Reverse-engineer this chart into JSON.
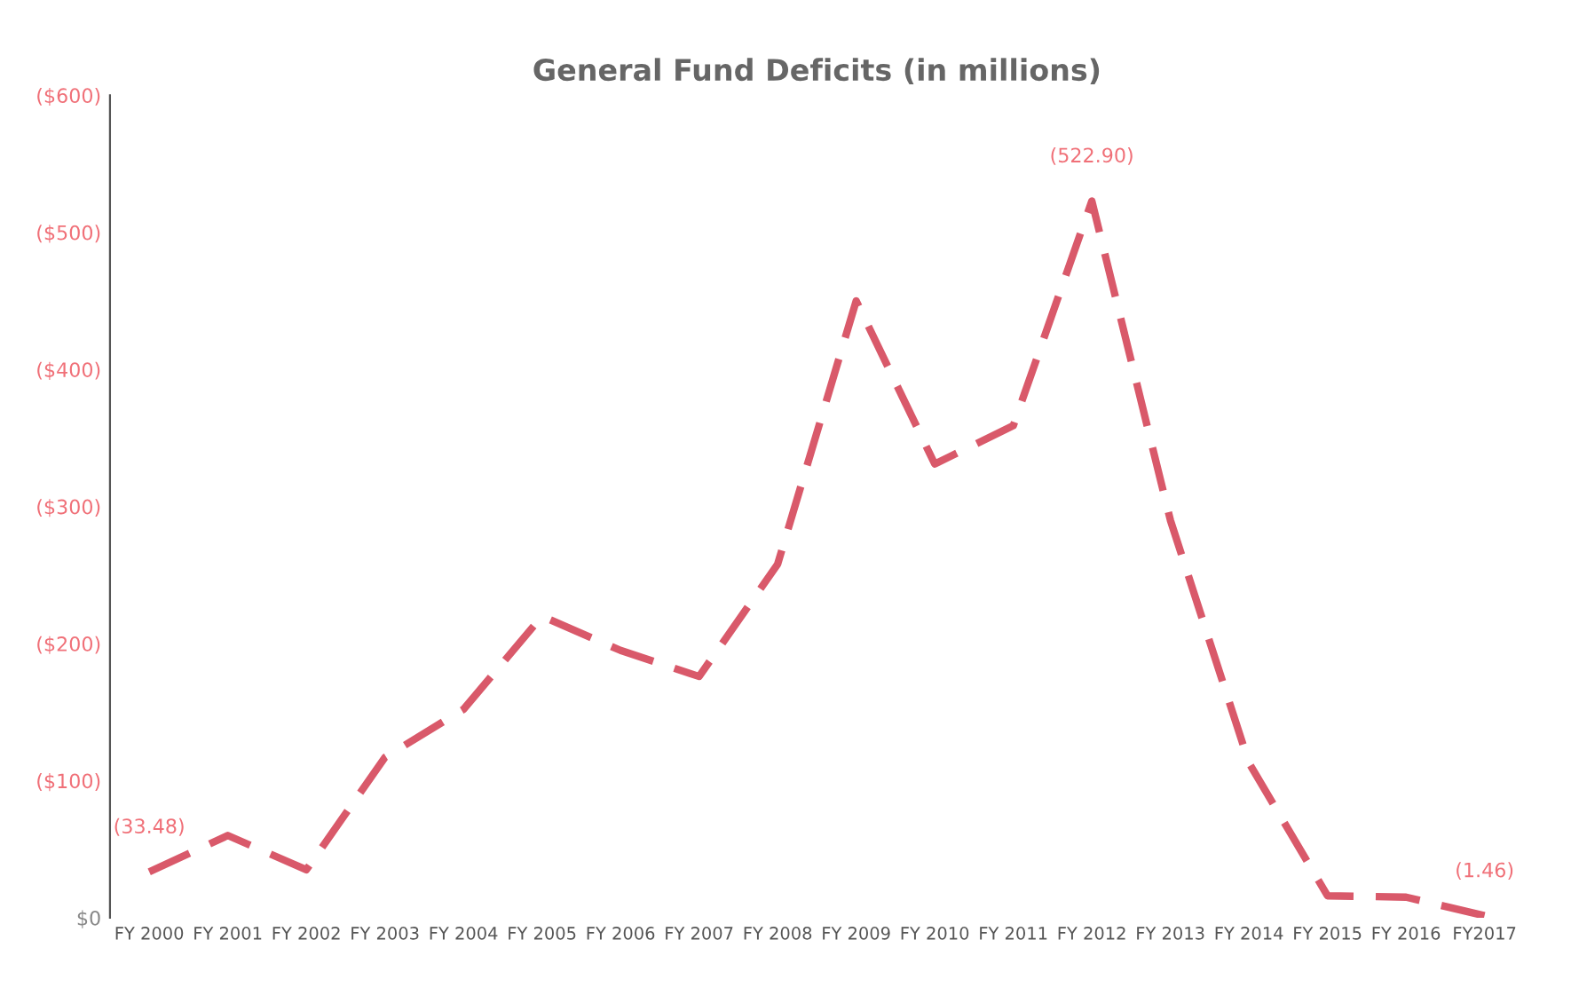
{
  "chart_data": {
    "type": "line",
    "title": "General Fund Deficits (in millions)",
    "categories": [
      "FY 2000",
      "FY 2001",
      "FY 2002",
      "FY 2003",
      "FY 2004",
      "FY 2005",
      "FY 2006",
      "FY 2007",
      "FY 2008",
      "FY 2009",
      "FY 2010",
      "FY 2011",
      "FY 2012",
      "FY 2013",
      "FY 2014",
      "FY 2015",
      "FY 2016",
      "FY2017"
    ],
    "series": [
      {
        "color": "#d9596a",
        "values": [
          33.48,
          60,
          35,
          117,
          152,
          220,
          195,
          176,
          258,
          450,
          331,
          359,
          522.9,
          290,
          113,
          16,
          15,
          1.46
        ],
        "value_labels": [
          "(33.48)",
          null,
          null,
          null,
          null,
          null,
          null,
          null,
          null,
          null,
          null,
          null,
          "(522.90)",
          null,
          null,
          null,
          null,
          "(1.46)"
        ]
      }
    ],
    "ylim": [
      0,
      600
    ],
    "yticks": [
      {
        "value": 0,
        "label": "$0"
      },
      {
        "value": 100,
        "label": "($100)"
      },
      {
        "value": 200,
        "label": "($200)"
      },
      {
        "value": 300,
        "label": "($300)"
      },
      {
        "value": 400,
        "label": "($400)"
      },
      {
        "value": 500,
        "label": "($500)"
      },
      {
        "value": 600,
        "label": "($600)"
      }
    ],
    "grid": false,
    "legend": false,
    "marker": "none",
    "line_style": "dashed"
  }
}
